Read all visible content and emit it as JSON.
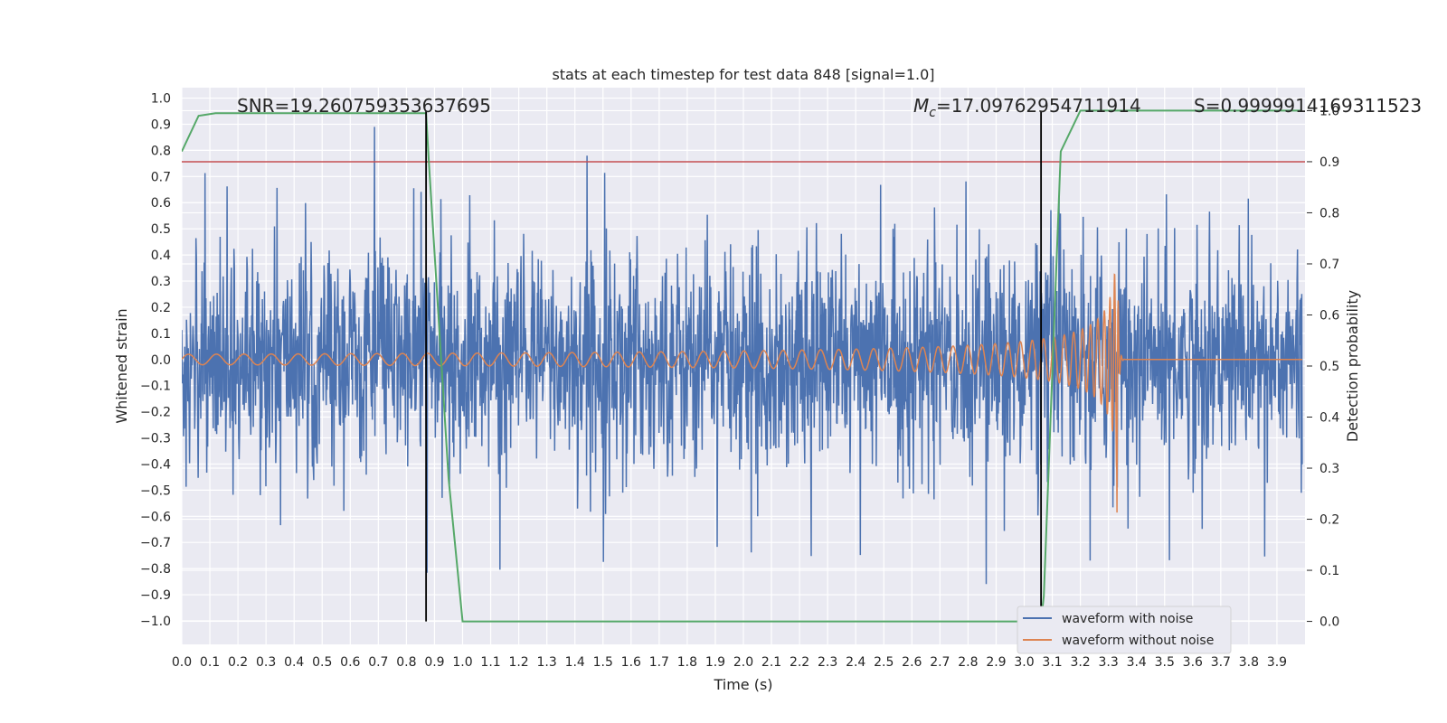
{
  "chart_data": {
    "type": "line",
    "title": "stats at each timestep for test data 848 [signal=1.0]",
    "xlabel": "Time (s)",
    "ylabel": "Whitened strain",
    "y2label": "Detection probability",
    "xlim": [
      0.0,
      4.0
    ],
    "ylim": [
      -1.09,
      1.04
    ],
    "y2lim": [
      -0.045,
      1.045
    ],
    "xticks": [
      "0.0",
      "0.1",
      "0.2",
      "0.3",
      "0.4",
      "0.5",
      "0.6",
      "0.7",
      "0.8",
      "0.9",
      "1.0",
      "1.1",
      "1.2",
      "1.3",
      "1.4",
      "1.5",
      "1.6",
      "1.7",
      "1.8",
      "1.9",
      "2.0",
      "2.1",
      "2.2",
      "2.3",
      "2.4",
      "2.5",
      "2.6",
      "2.7",
      "2.8",
      "2.9",
      "3.0",
      "3.1",
      "3.2",
      "3.3",
      "3.4",
      "3.5",
      "3.6",
      "3.7",
      "3.8",
      "3.9"
    ],
    "yticks": [
      "1.0",
      "0.9",
      "0.8",
      "0.7",
      "0.6",
      "0.5",
      "0.4",
      "0.3",
      "0.2",
      "0.1",
      "0.0",
      "-0.1",
      "-0.2",
      "-0.3",
      "-0.4",
      "-0.5",
      "-0.6",
      "-0.7",
      "-0.8",
      "-0.9",
      "-1.0"
    ],
    "y2ticks": [
      "1.0",
      "0.9",
      "0.8",
      "0.7",
      "0.6",
      "0.5",
      "0.4",
      "0.3",
      "0.2",
      "0.1",
      "0.0"
    ],
    "grid": true,
    "legend_position": "bottom-right",
    "annotations": {
      "snr": "SNR=19.260759353637695",
      "mc_symbol": "M",
      "mc_sub": "c",
      "mc_value": "=17.09762954711914",
      "s": "S=0.9999914169311523"
    },
    "series": [
      {
        "name": "waveform with noise",
        "color": "#4c72b0",
        "description": "noisy whitened strain, amplitude mostly within ±0.5 with spikes to ±0.9"
      },
      {
        "name": "waveform without noise",
        "color": "#dd8452",
        "chirp": {
          "start": 0.0,
          "merger": 3.33,
          "amp_start": 0.02,
          "amp_peak": 0.75,
          "freq_start": 10,
          "freq_peak": 40
        }
      },
      {
        "name": "detection probability",
        "color": "#55a868",
        "axis": "right",
        "x": [
          0.0,
          0.06,
          0.12,
          0.87,
          0.88,
          0.95,
          1.0,
          3.06,
          3.07,
          3.13,
          3.2,
          3.99
        ],
        "y": [
          0.92,
          0.99,
          0.995,
          0.995,
          0.9,
          0.28,
          0.0,
          0.0,
          0.05,
          0.92,
          1.0,
          1.0
        ]
      }
    ],
    "threshold_line": {
      "y2": 0.9,
      "color": "#c44e52"
    },
    "vertical_markers": [
      0.87,
      3.06
    ],
    "marker_color": "#000000"
  }
}
